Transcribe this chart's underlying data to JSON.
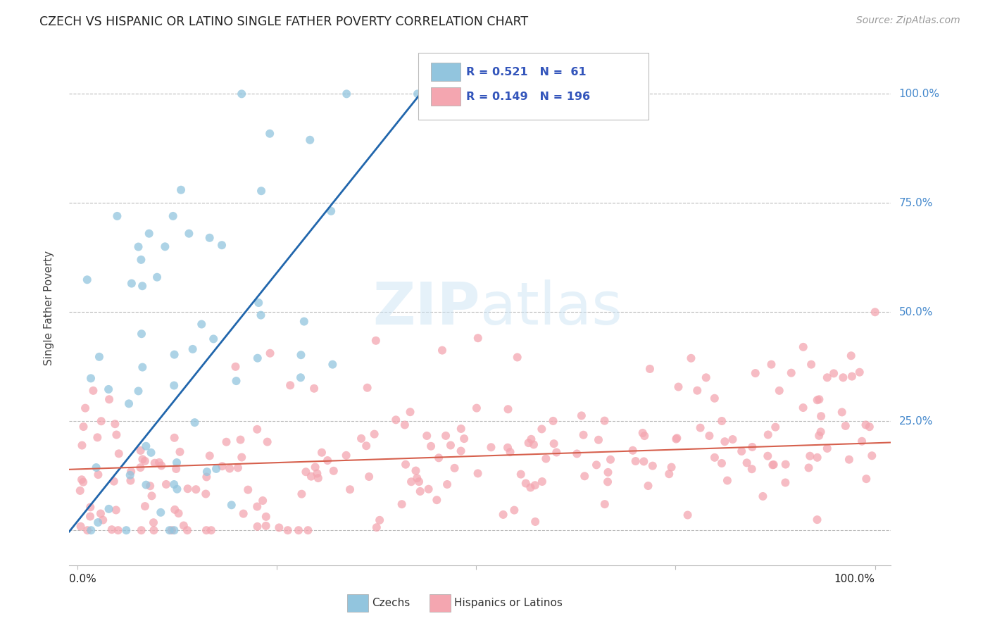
{
  "title": "CZECH VS HISPANIC OR LATINO SINGLE FATHER POVERTY CORRELATION CHART",
  "source": "Source: ZipAtlas.com",
  "ylabel": "Single Father Poverty",
  "blue_color": "#92c5de",
  "pink_color": "#f4a6b0",
  "blue_line_color": "#2166ac",
  "pink_line_color": "#d6604d",
  "legend_blue_label": "Czechs",
  "legend_pink_label": "Hispanics or Latinos",
  "legend_R_blue": "R = 0.521",
  "legend_N_blue": "N =  61",
  "legend_R_pink": "R = 0.149",
  "legend_N_pink": "N = 196",
  "ytick_labels": [
    "",
    "25.0%",
    "50.0%",
    "75.0%",
    "100.0%"
  ],
  "ytick_vals": [
    0.0,
    0.25,
    0.5,
    0.75,
    1.0
  ],
  "xlim": [
    -0.01,
    1.02
  ],
  "ylim": [
    -0.08,
    1.1
  ],
  "xtick_left": "0.0%",
  "xtick_right": "100.0%"
}
